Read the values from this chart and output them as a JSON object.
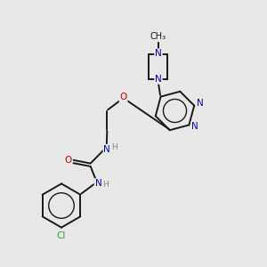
{
  "background_color": "#e8e8e8",
  "fig_size": [
    3.0,
    3.0
  ],
  "dpi": 100,
  "atom_colors": {
    "N": "#0000cc",
    "O": "#cc0000",
    "Cl": "#22aa22",
    "C": "#1a1a1a",
    "H": "#888888"
  },
  "bond_color": "#1a1a1a",
  "bond_width": 1.4,
  "font_size": 7.5
}
